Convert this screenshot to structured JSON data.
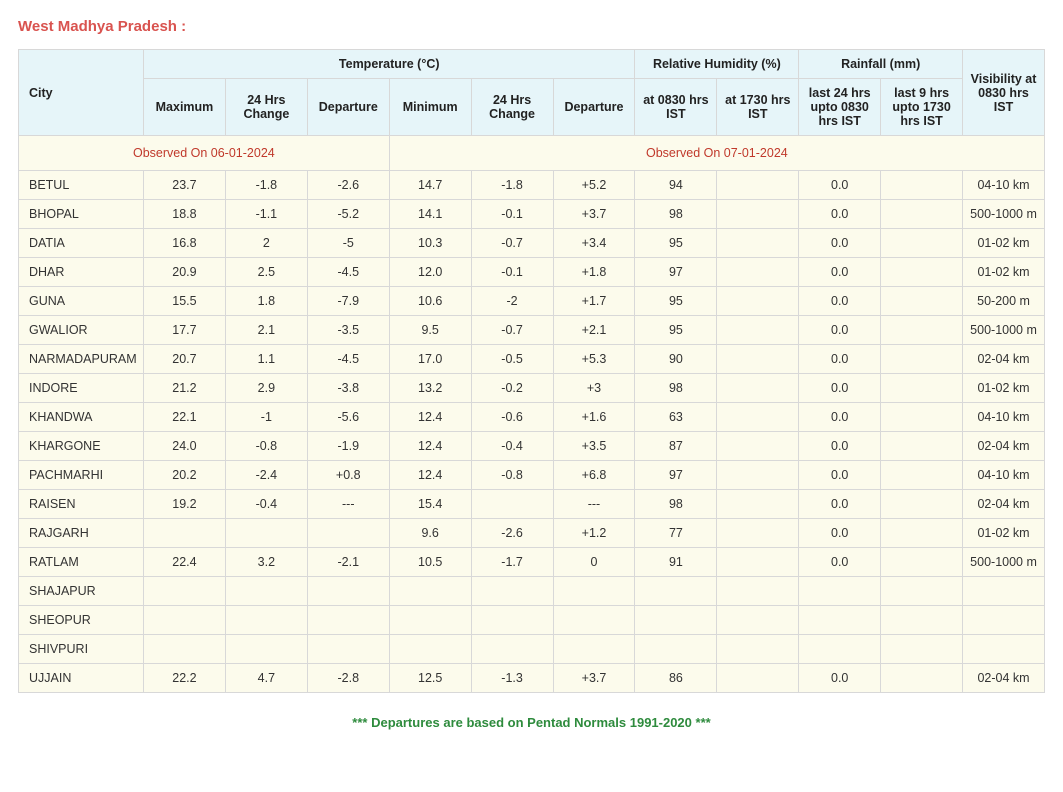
{
  "region_title": "West Madhya Pradesh :",
  "headers": {
    "city": "City",
    "temp_group": "Temperature (°C)",
    "rh_group": "Relative Humidity (%)",
    "rain_group": "Rainfall (mm)",
    "vis": "Visibility at 0830 hrs IST",
    "max": "Maximum",
    "ch24_1": "24 Hrs Change",
    "dep1": "Departure",
    "min": "Minimum",
    "ch24_2": "24 Hrs Change",
    "dep2": "Departure",
    "rh0830": "at 0830 hrs IST",
    "rh1730": "at 1730 hrs IST",
    "rain24": "last 24 hrs upto 0830 hrs IST",
    "rain9": "last 9 hrs upto 1730 hrs IST",
    "obs1": "Observed On 06-01-2024",
    "obs2": "Observed On 07-01-2024"
  },
  "rows": [
    {
      "city": "BETUL",
      "max": "23.7",
      "ch1": "-1.8",
      "dep1": "-2.6",
      "min": "14.7",
      "ch2": "-1.8",
      "dep2": "+5.2",
      "rh1": "94",
      "rh2": "",
      "r24": "0.0",
      "r9": "",
      "vis": "04-10 km"
    },
    {
      "city": "BHOPAL",
      "max": "18.8",
      "ch1": "-1.1",
      "dep1": "-5.2",
      "min": "14.1",
      "ch2": "-0.1",
      "dep2": "+3.7",
      "rh1": "98",
      "rh2": "",
      "r24": "0.0",
      "r9": "",
      "vis": "500-1000 m"
    },
    {
      "city": "DATIA",
      "max": "16.8",
      "ch1": "2",
      "dep1": "-5",
      "min": "10.3",
      "ch2": "-0.7",
      "dep2": "+3.4",
      "rh1": "95",
      "rh2": "",
      "r24": "0.0",
      "r9": "",
      "vis": "01-02 km"
    },
    {
      "city": "DHAR",
      "max": "20.9",
      "ch1": "2.5",
      "dep1": "-4.5",
      "min": "12.0",
      "ch2": "-0.1",
      "dep2": "+1.8",
      "rh1": "97",
      "rh2": "",
      "r24": "0.0",
      "r9": "",
      "vis": "01-02 km"
    },
    {
      "city": "GUNA",
      "max": "15.5",
      "ch1": "1.8",
      "dep1": "-7.9",
      "min": "10.6",
      "ch2": "-2",
      "dep2": "+1.7",
      "rh1": "95",
      "rh2": "",
      "r24": "0.0",
      "r9": "",
      "vis": "50-200 m"
    },
    {
      "city": "GWALIOR",
      "max": "17.7",
      "ch1": "2.1",
      "dep1": "-3.5",
      "min": "9.5",
      "ch2": "-0.7",
      "dep2": "+2.1",
      "rh1": "95",
      "rh2": "",
      "r24": "0.0",
      "r9": "",
      "vis": "500-1000 m"
    },
    {
      "city": "NARMADAPURAM",
      "max": "20.7",
      "ch1": "1.1",
      "dep1": "-4.5",
      "min": "17.0",
      "ch2": "-0.5",
      "dep2": "+5.3",
      "rh1": "90",
      "rh2": "",
      "r24": "0.0",
      "r9": "",
      "vis": "02-04 km"
    },
    {
      "city": "INDORE",
      "max": "21.2",
      "ch1": "2.9",
      "dep1": "-3.8",
      "min": "13.2",
      "ch2": "-0.2",
      "dep2": "+3",
      "rh1": "98",
      "rh2": "",
      "r24": "0.0",
      "r9": "",
      "vis": "01-02 km"
    },
    {
      "city": "KHANDWA",
      "max": "22.1",
      "ch1": "-1",
      "dep1": "-5.6",
      "min": "12.4",
      "ch2": "-0.6",
      "dep2": "+1.6",
      "rh1": "63",
      "rh2": "",
      "r24": "0.0",
      "r9": "",
      "vis": "04-10 km"
    },
    {
      "city": "KHARGONE",
      "max": "24.0",
      "ch1": "-0.8",
      "dep1": "-1.9",
      "min": "12.4",
      "ch2": "-0.4",
      "dep2": "+3.5",
      "rh1": "87",
      "rh2": "",
      "r24": "0.0",
      "r9": "",
      "vis": "02-04 km"
    },
    {
      "city": "PACHMARHI",
      "max": "20.2",
      "ch1": "-2.4",
      "dep1": "+0.8",
      "min": "12.4",
      "ch2": "-0.8",
      "dep2": "+6.8",
      "rh1": "97",
      "rh2": "",
      "r24": "0.0",
      "r9": "",
      "vis": "04-10 km"
    },
    {
      "city": "RAISEN",
      "max": "19.2",
      "ch1": "-0.4",
      "dep1": "---",
      "min": "15.4",
      "ch2": "",
      "dep2": "---",
      "rh1": "98",
      "rh2": "",
      "r24": "0.0",
      "r9": "",
      "vis": "02-04 km"
    },
    {
      "city": "RAJGARH",
      "max": "",
      "ch1": "",
      "dep1": "",
      "min": "9.6",
      "ch2": "-2.6",
      "dep2": "+1.2",
      "rh1": "77",
      "rh2": "",
      "r24": "0.0",
      "r9": "",
      "vis": "01-02 km"
    },
    {
      "city": "RATLAM",
      "max": "22.4",
      "ch1": "3.2",
      "dep1": "-2.1",
      "min": "10.5",
      "ch2": "-1.7",
      "dep2": "0",
      "rh1": "91",
      "rh2": "",
      "r24": "0.0",
      "r9": "",
      "vis": "500-1000 m"
    },
    {
      "city": "SHAJAPUR",
      "max": "",
      "ch1": "",
      "dep1": "",
      "min": "",
      "ch2": "",
      "dep2": "",
      "rh1": "",
      "rh2": "",
      "r24": "",
      "r9": "",
      "vis": ""
    },
    {
      "city": "SHEOPUR",
      "max": "",
      "ch1": "",
      "dep1": "",
      "min": "",
      "ch2": "",
      "dep2": "",
      "rh1": "",
      "rh2": "",
      "r24": "",
      "r9": "",
      "vis": ""
    },
    {
      "city": "SHIVPURI",
      "max": "",
      "ch1": "",
      "dep1": "",
      "min": "",
      "ch2": "",
      "dep2": "",
      "rh1": "",
      "rh2": "",
      "r24": "",
      "r9": "",
      "vis": ""
    },
    {
      "city": "UJJAIN",
      "max": "22.2",
      "ch1": "4.7",
      "dep1": "-2.8",
      "min": "12.5",
      "ch2": "-1.3",
      "dep2": "+3.7",
      "rh1": "86",
      "rh2": "",
      "r24": "0.0",
      "r9": "",
      "vis": "02-04 km"
    }
  ],
  "footnote": "*** Departures are based on Pentad Normals 1991-2020 ***",
  "colors": {
    "title": "#d9534f",
    "header_bg": "#e6f5f9",
    "body_bg": "#fcfbec",
    "border": "#d8d8d8",
    "obs_text": "#c0392b",
    "foot_text": "#2e8b3d"
  }
}
